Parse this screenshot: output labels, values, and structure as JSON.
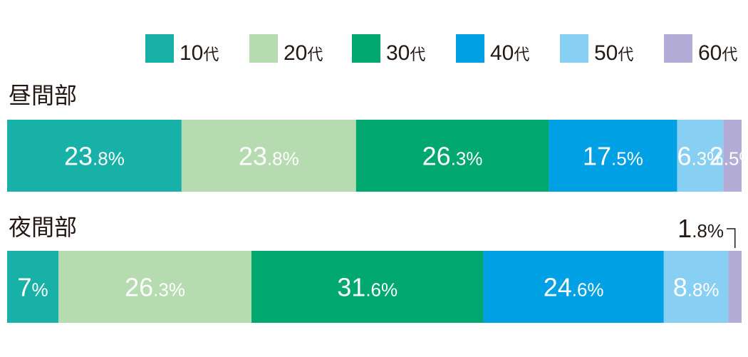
{
  "chart_data": {
    "type": "bar",
    "orientation": "horizontal-stacked",
    "legend_placement": "top-right",
    "series": [
      {
        "name": "10代",
        "color": "#17b1a8"
      },
      {
        "name": "20代",
        "color": "#b6dbb0"
      },
      {
        "name": "30代",
        "color": "#00a86f"
      },
      {
        "name": "40代",
        "color": "#00a0e4"
      },
      {
        "name": "50代",
        "color": "#88d0f3"
      },
      {
        "name": "60代",
        "color": "#b3acd7"
      }
    ],
    "rows": [
      {
        "category": "昼間部",
        "values": [
          23.8,
          23.8,
          26.3,
          17.5,
          6.3,
          2.5
        ],
        "labels": [
          [
            "23",
            ".8%"
          ],
          [
            "23",
            ".8%"
          ],
          [
            "26",
            ".3%"
          ],
          [
            "17",
            ".5%"
          ],
          [
            "6",
            ".3%"
          ],
          [
            "2",
            ".5%"
          ]
        ]
      },
      {
        "category": "夜間部",
        "values": [
          7,
          26.3,
          31.6,
          24.6,
          8.8,
          1.8
        ],
        "labels": [
          [
            "7",
            "%"
          ],
          [
            "26",
            ".3%"
          ],
          [
            "31",
            ".6%"
          ],
          [
            "24",
            ".6%"
          ],
          [
            "8",
            ".8%"
          ],
          [
            "1",
            ".8%"
          ]
        ]
      }
    ]
  }
}
